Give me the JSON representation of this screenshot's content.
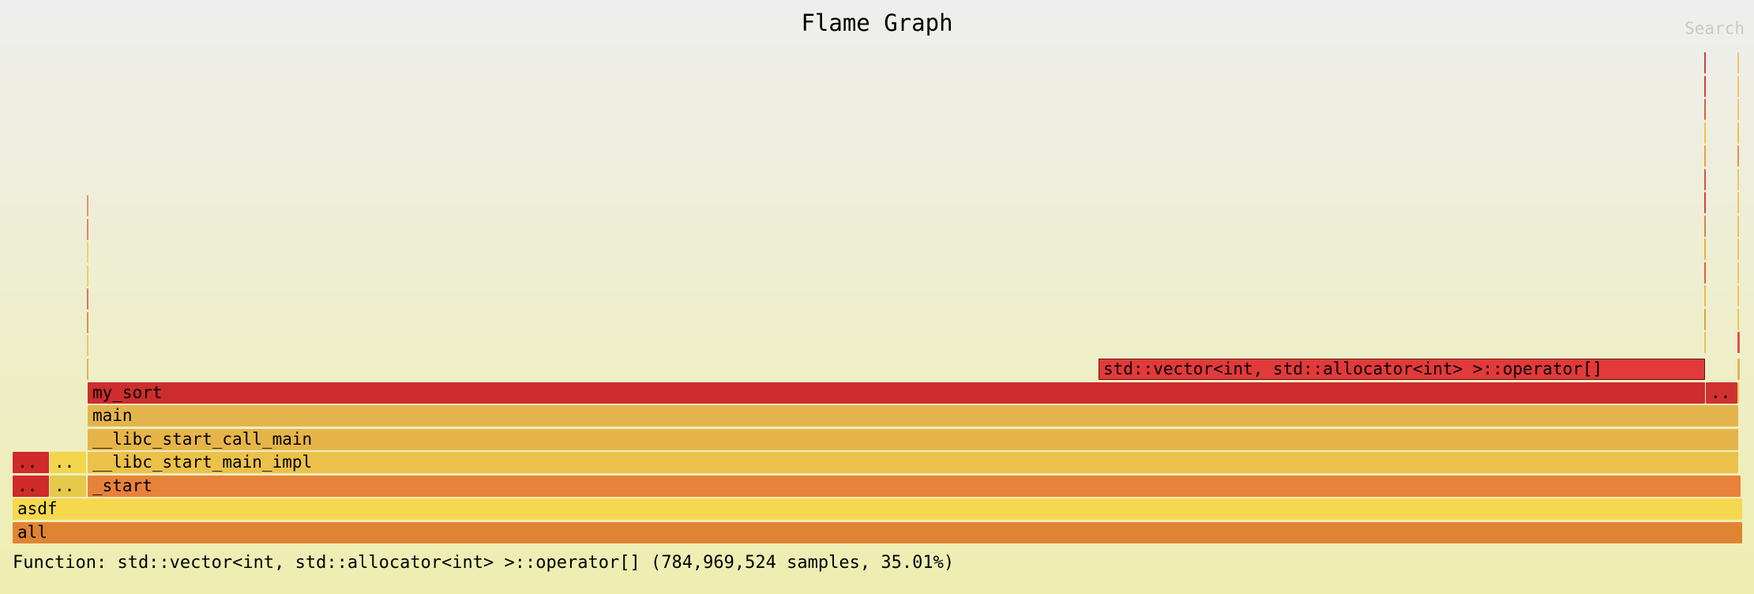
{
  "header": {
    "title": "Flame Graph",
    "search_label": "Search"
  },
  "frames": {
    "all": "all",
    "asdf": "asdf",
    "start": "_start",
    "start_elided_1": "..",
    "start_elided_2": "..",
    "libc_start_main_impl": "__libc_start_main_impl",
    "libc_impl_elided_1": "..",
    "libc_impl_elided_2": "..",
    "libc_start_call_main": "__libc_start_call_main",
    "main": "main",
    "my_sort": "my_sort",
    "my_sort_elided": "..",
    "vector_operator": "std::vector<int, std::allocator<int> >::operator[]"
  },
  "details": {
    "text": "Function: std::vector<int, std::allocator<int> >::operator[] (784,969,524 samples, 35.01%)"
  },
  "colors": {
    "all": "#e08434",
    "asdf": "#f5d84e",
    "start": "#e8823a",
    "libc_start_main_impl": "#ecc14a",
    "libc_start_call_main": "#e6b54a",
    "main": "#e4b44c",
    "my_sort": "#cd2d2d",
    "vector_operator": "#e2393a",
    "elided_red": "#d02a2a",
    "elided_yellow": "#e6c84a"
  }
}
